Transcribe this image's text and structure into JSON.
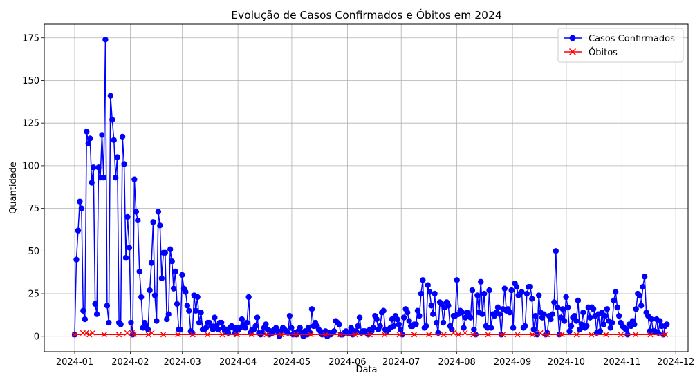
{
  "chart_data": {
    "type": "line",
    "title": "Evolução de Casos Confirmados e Óbitos em 2024",
    "xlabel": "Data",
    "ylabel": "Quantidade",
    "x_range": [
      "2024-01-01",
      "2024-11-26"
    ],
    "x_ticks": [
      "2024-01",
      "2024-02",
      "2024-03",
      "2024-04",
      "2024-05",
      "2024-06",
      "2024-07",
      "2024-08",
      "2024-09",
      "2024-10",
      "2024-11",
      "2024-12"
    ],
    "ylim": [
      -9,
      183
    ],
    "y_ticks": [
      0,
      25,
      50,
      75,
      100,
      125,
      150,
      175
    ],
    "grid": true,
    "legend_position": "top-right",
    "series": [
      {
        "name": "Casos Confirmados",
        "color": "#0000ff",
        "marker": "circle",
        "values": [
          1,
          45,
          62,
          79,
          75,
          15,
          10,
          120,
          113,
          116,
          90,
          99,
          19,
          13,
          99,
          93,
          118,
          93,
          174,
          18,
          8,
          141,
          127,
          115,
          93,
          105,
          8,
          7,
          117,
          101,
          46,
          70,
          52,
          8,
          1,
          92,
          73,
          68,
          38,
          23,
          5,
          8,
          6,
          4,
          27,
          43,
          67,
          24,
          9,
          73,
          65,
          34,
          49,
          49,
          10,
          13,
          51,
          44,
          28,
          38,
          19,
          4,
          4,
          36,
          28,
          26,
          18,
          15,
          3,
          2,
          24,
          15,
          23,
          8,
          14,
          4,
          4,
          5,
          8,
          8,
          6,
          4,
          11,
          6,
          4,
          8,
          8,
          5,
          3,
          4,
          2,
          5,
          6,
          5,
          2,
          5,
          4,
          5,
          10,
          7,
          5,
          8,
          23,
          2,
          4,
          4,
          6,
          11,
          2,
          1,
          2,
          5,
          7,
          4,
          1,
          3,
          2,
          4,
          5,
          3,
          0,
          3,
          5,
          4,
          3,
          2,
          12,
          5,
          1,
          2,
          1,
          3,
          5,
          2,
          0,
          3,
          1,
          5,
          2,
          16,
          6,
          8,
          6,
          4,
          3,
          1,
          2,
          3,
          0,
          2,
          1,
          2,
          3,
          9,
          8,
          7,
          1,
          1,
          2,
          3,
          2,
          2,
          5,
          1,
          3,
          3,
          6,
          11,
          2,
          3,
          3,
          2,
          1,
          4,
          3,
          5,
          12,
          10,
          4,
          6,
          14,
          15,
          4,
          3,
          4,
          5,
          10,
          6,
          12,
          10,
          7,
          4,
          1,
          11,
          16,
          14,
          9,
          6,
          6,
          7,
          7,
          15,
          12,
          25,
          33,
          5,
          6,
          30,
          26,
          18,
          13,
          25,
          8,
          2,
          20,
          19,
          8,
          17,
          20,
          18,
          6,
          4,
          12,
          12,
          33,
          13,
          15,
          14,
          5,
          11,
          14,
          12,
          11,
          27,
          4,
          1,
          24,
          14,
          32,
          13,
          25,
          6,
          5,
          27,
          5,
          13,
          12,
          14,
          17,
          13,
          1,
          16,
          28,
          15,
          16,
          14,
          27,
          5,
          31,
          29,
          24,
          25,
          26,
          5,
          6,
          25,
          29,
          29,
          22,
          4,
          12,
          1,
          24,
          14,
          11,
          13,
          1,
          2,
          12,
          10,
          13,
          20,
          50,
          17,
          1,
          11,
          16,
          9,
          23,
          17,
          3,
          6,
          11,
          12,
          9,
          21,
          4,
          7,
          14,
          5,
          6,
          17,
          11,
          17,
          16,
          12,
          2,
          13,
          3,
          14,
          7,
          12,
          16,
          9,
          5,
          8,
          21,
          26,
          17,
          12,
          8,
          6,
          5,
          4,
          1,
          7,
          6,
          9,
          7,
          16,
          25,
          24,
          18,
          29,
          35,
          14,
          12,
          3,
          10,
          3,
          3,
          10,
          2,
          9,
          6,
          1,
          6,
          7
        ],
        "values_note": "points spaced uniformly across the plotted date span"
      },
      {
        "name": "Óbitos",
        "color": "#ff0000",
        "marker": "x",
        "values": [
          1,
          1,
          1,
          1,
          1,
          2,
          1,
          2,
          1,
          1,
          1,
          2,
          1,
          1,
          1,
          1,
          1,
          1,
          1,
          1,
          1,
          1,
          1,
          1,
          1,
          1,
          1,
          1,
          1,
          1,
          1,
          1,
          2,
          1,
          1,
          2,
          1,
          1,
          1,
          1,
          1,
          1,
          1,
          1,
          1,
          1,
          1,
          2,
          1,
          1,
          1,
          1,
          1,
          1,
          1,
          1,
          1,
          1,
          1,
          1,
          1,
          1,
          1,
          1,
          1,
          1,
          1,
          1,
          1,
          1,
          1,
          1,
          1,
          1,
          1,
          1,
          1,
          1,
          1,
          1,
          1,
          1,
          1,
          1,
          1,
          1,
          1,
          1,
          1,
          1,
          1,
          1,
          1,
          1,
          1,
          1,
          1,
          1,
          1,
          1,
          1,
          1,
          1,
          1,
          1,
          1,
          1,
          1,
          1,
          1,
          1,
          1,
          1,
          1,
          1,
          1,
          1,
          1,
          1,
          1,
          1,
          1,
          1,
          1,
          1,
          1,
          1,
          1,
          1,
          1,
          1,
          1,
          1,
          1,
          1,
          1,
          1,
          1,
          1,
          1,
          1,
          1,
          1,
          1,
          1,
          1,
          1,
          1,
          1,
          1,
          1,
          1,
          1,
          1,
          1,
          1,
          1,
          1,
          1,
          1,
          1,
          1,
          1,
          1,
          1,
          1,
          1,
          1,
          1,
          1,
          1,
          1,
          1,
          1,
          1,
          1,
          1,
          1,
          1,
          1,
          1,
          1,
          1,
          1,
          1,
          1,
          1,
          1,
          1,
          1,
          1,
          1,
          1,
          1,
          1,
          1,
          1,
          1,
          1,
          1,
          1,
          1,
          1,
          1,
          1,
          1,
          1,
          1,
          1,
          1,
          1,
          1,
          1,
          1,
          1,
          1,
          1,
          1,
          1,
          1,
          1,
          1,
          1,
          1,
          1,
          1,
          1,
          1,
          1,
          1,
          1,
          2,
          1,
          1,
          1,
          1,
          1,
          1,
          2,
          1,
          1,
          1,
          1,
          1,
          1,
          1,
          1,
          1,
          1,
          1,
          1,
          1,
          1,
          1,
          1,
          1,
          1,
          1,
          1,
          1,
          1,
          1,
          1,
          1,
          1,
          1,
          1,
          1,
          1,
          1,
          1,
          1,
          1,
          1,
          1,
          1,
          1,
          1,
          1,
          1,
          1,
          1,
          1,
          1,
          2,
          1,
          1,
          1,
          1,
          1,
          1,
          1,
          1,
          1,
          1,
          1,
          1,
          1,
          1,
          1,
          1,
          1,
          1,
          1,
          1,
          1,
          1,
          1,
          1,
          1,
          1,
          1,
          1,
          1,
          1,
          1,
          1,
          1,
          1,
          1,
          1,
          1,
          1,
          1,
          1,
          1,
          1,
          1,
          1,
          1,
          1,
          1,
          1,
          1,
          1,
          1,
          1,
          1,
          1,
          1,
          1,
          1,
          1,
          1,
          1,
          1,
          1,
          1,
          1,
          1,
          1,
          1,
          1,
          1,
          1,
          1,
          1,
          1,
          1,
          1,
          1,
          1
        ],
        "values_note": "sampled near-zero line; x markers at selected points"
      }
    ]
  }
}
